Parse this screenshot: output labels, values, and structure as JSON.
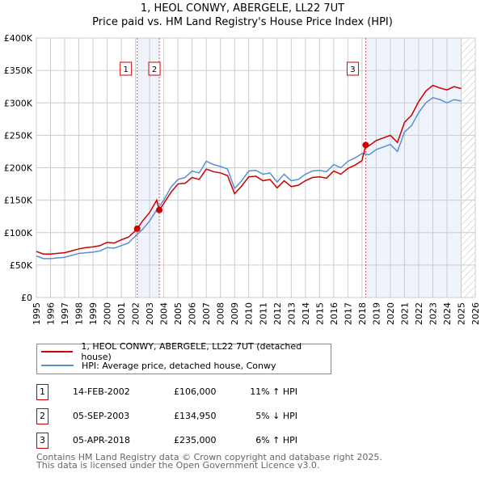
{
  "title": "1, HEOL CONWY, ABERGELE, LL22 7UT",
  "subtitle": "Price paid vs. HM Land Registry's House Price Index (HPI)",
  "chart_data": {
    "type": "line",
    "xlim": [
      1995,
      2026
    ],
    "ylim": [
      0,
      400000
    ],
    "y_ticks": [
      {
        "v": 0,
        "label": "£0"
      },
      {
        "v": 50000,
        "label": "£50K"
      },
      {
        "v": 100000,
        "label": "£100K"
      },
      {
        "v": 150000,
        "label": "£150K"
      },
      {
        "v": 200000,
        "label": "£200K"
      },
      {
        "v": 250000,
        "label": "£250K"
      },
      {
        "v": 300000,
        "label": "£300K"
      },
      {
        "v": 350000,
        "label": "£350K"
      },
      {
        "v": 400000,
        "label": "£400K"
      }
    ],
    "x_ticks": [
      "1995",
      "1996",
      "1997",
      "1998",
      "1999",
      "2000",
      "2001",
      "2002",
      "2003",
      "2004",
      "2005",
      "2006",
      "2007",
      "2008",
      "2009",
      "2010",
      "2011",
      "2012",
      "2013",
      "2014",
      "2015",
      "2016",
      "2017",
      "2018",
      "2019",
      "2020",
      "2021",
      "2022",
      "2023",
      "2024",
      "2025",
      "2026"
    ],
    "grid": true,
    "shaded_ranges": [
      [
        2002.12,
        2003.68
      ],
      [
        2018.26,
        2025.0
      ]
    ],
    "hatched_range": [
      2025.0,
      2026
    ],
    "series": [
      {
        "name": "1, HEOL CONWY, ABERGELE, LL22 7UT (detached house)",
        "color": "#cc0000",
        "x": [
          1995,
          1995.5,
          1996,
          1996.5,
          1997,
          1997.5,
          1998,
          1998.5,
          1999,
          1999.5,
          2000,
          2000.5,
          2001,
          2001.5,
          2002,
          2002.12,
          2002.5,
          2003,
          2003.5,
          2003.68,
          2004,
          2004.5,
          2005,
          2005.5,
          2006,
          2006.5,
          2007,
          2007.5,
          2008,
          2008.5,
          2009,
          2009.5,
          2010,
          2010.5,
          2011,
          2011.5,
          2012,
          2012.5,
          2013,
          2013.5,
          2014,
          2014.5,
          2015,
          2015.5,
          2016,
          2016.5,
          2017,
          2017.5,
          2018,
          2018.26,
          2018.5,
          2019,
          2019.5,
          2020,
          2020.5,
          2021,
          2021.5,
          2022,
          2022.5,
          2023,
          2023.5,
          2024,
          2024.5,
          2025
        ],
        "y": [
          71000,
          67000,
          67000,
          68000,
          69000,
          72000,
          75000,
          77000,
          78000,
          80000,
          85000,
          84000,
          89000,
          93000,
          103000,
          106000,
          118000,
          131000,
          150000,
          134950,
          145000,
          162000,
          175000,
          176000,
          185000,
          182000,
          198000,
          194000,
          192000,
          188000,
          160000,
          172000,
          186000,
          187000,
          180000,
          182000,
          169000,
          180000,
          171000,
          173000,
          180000,
          185000,
          186000,
          184000,
          195000,
          190000,
          199000,
          204000,
          211000,
          235000,
          234000,
          242000,
          246000,
          250000,
          239000,
          270000,
          281000,
          302000,
          318000,
          327000,
          323000,
          320000,
          325000,
          322000
        ]
      },
      {
        "name": "HPI: Average price, detached house, Conwy",
        "color": "#5b8fd4",
        "x": [
          1995,
          1995.5,
          1996,
          1996.5,
          1997,
          1997.5,
          1998,
          1998.5,
          1999,
          1999.5,
          2000,
          2000.5,
          2001,
          2001.5,
          2002,
          2002.5,
          2003,
          2003.5,
          2004,
          2004.5,
          2005,
          2005.5,
          2006,
          2006.5,
          2007,
          2007.5,
          2008,
          2008.5,
          2009,
          2009.5,
          2010,
          2010.5,
          2011,
          2011.5,
          2012,
          2012.5,
          2013,
          2013.5,
          2014,
          2014.5,
          2015,
          2015.5,
          2016,
          2016.5,
          2017,
          2017.5,
          2018,
          2018.5,
          2019,
          2019.5,
          2020,
          2020.5,
          2021,
          2021.5,
          2022,
          2022.5,
          2023,
          2023.5,
          2024,
          2024.5,
          2025
        ],
        "y": [
          64000,
          60000,
          60000,
          61000,
          62000,
          65000,
          68000,
          69000,
          70000,
          72000,
          77000,
          76000,
          80000,
          84000,
          95000,
          105000,
          118000,
          135000,
          150000,
          170000,
          182000,
          185000,
          195000,
          192000,
          210000,
          205000,
          202000,
          198000,
          168000,
          180000,
          195000,
          196000,
          190000,
          192000,
          178000,
          190000,
          180000,
          182000,
          190000,
          195000,
          196000,
          194000,
          205000,
          200000,
          210000,
          215000,
          222000,
          220000,
          228000,
          232000,
          236000,
          225000,
          255000,
          265000,
          285000,
          300000,
          308000,
          305000,
          300000,
          305000,
          303000
        ]
      }
    ],
    "sales": [
      {
        "id": "1",
        "x": 2002.12,
        "y": 106000
      },
      {
        "id": "2",
        "x": 2003.68,
        "y": 134950
      },
      {
        "id": "3",
        "x": 2018.26,
        "y": 235000
      }
    ]
  },
  "legend": {
    "red": "1, HEOL CONWY, ABERGELE, LL22 7UT (detached house)",
    "blue": "HPI: Average price, detached house, Conwy"
  },
  "transactions": [
    {
      "id": "1",
      "date": "14-FEB-2002",
      "price": "£106,000",
      "hpi": "11% ↑ HPI"
    },
    {
      "id": "2",
      "date": "05-SEP-2003",
      "price": "£134,950",
      "hpi": "5% ↓ HPI"
    },
    {
      "id": "3",
      "date": "05-APR-2018",
      "price": "£235,000",
      "hpi": "6% ↑ HPI"
    }
  ],
  "footer": {
    "line1": "Contains HM Land Registry data © Crown copyright and database right 2025.",
    "line2": "This data is licensed under the Open Government Licence v3.0."
  }
}
